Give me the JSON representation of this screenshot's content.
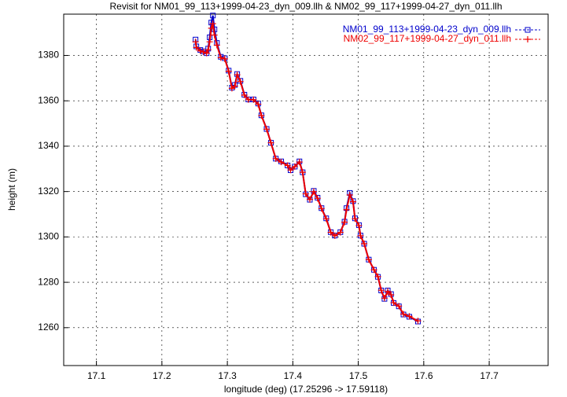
{
  "chart_data": {
    "type": "line",
    "title": "Revisit for NM01_99_113+1999-04-23_dyn_009.llh & NM02_99_117+1999-04-27_dyn_011.llh",
    "xlabel": "longitude (deg) (17.25296 -> 17.59118)",
    "ylabel": "height (m)",
    "xlim": [
      17.05,
      17.79
    ],
    "ylim": [
      1243.3,
      1398.2
    ],
    "xticks": [
      17.1,
      17.2,
      17.3,
      17.4,
      17.5,
      17.6,
      17.7
    ],
    "yticks": [
      1260,
      1280,
      1300,
      1320,
      1340,
      1360,
      1380
    ],
    "grid": true,
    "legend": "top-right",
    "series": [
      {
        "name": "NM01_99_113+1999-04-23_dyn_009.llh",
        "color": "#0000cc",
        "marker": "square",
        "x": [
          17.2514,
          17.2526,
          17.2587,
          17.2635,
          17.2683,
          17.2707,
          17.273,
          17.2755,
          17.2779,
          17.2803,
          17.284,
          17.29,
          17.296,
          17.302,
          17.307,
          17.3115,
          17.315,
          17.3199,
          17.326,
          17.332,
          17.34,
          17.3471,
          17.352,
          17.36,
          17.3666,
          17.374,
          17.3822,
          17.392,
          17.3966,
          17.403,
          17.4101,
          17.415,
          17.4197,
          17.426,
          17.432,
          17.4378,
          17.4438,
          17.451,
          17.458,
          17.4642,
          17.4726,
          17.479,
          17.482,
          17.487,
          17.492,
          17.495,
          17.501,
          17.5034,
          17.509,
          17.516,
          17.524,
          17.53,
          17.535,
          17.54,
          17.545,
          17.55,
          17.554,
          17.562,
          17.569,
          17.578,
          17.5912
        ],
        "values": [
          1387,
          1384,
          1382.4,
          1381.8,
          1381,
          1383,
          1388,
          1394.5,
          1397.6,
          1391.5,
          1385.5,
          1379.4,
          1378.8,
          1373.3,
          1365.8,
          1367,
          1371.8,
          1368.8,
          1362.7,
          1360.6,
          1360.6,
          1358.8,
          1353.6,
          1347.6,
          1341.5,
          1334.5,
          1333.3,
          1331.5,
          1329.4,
          1331,
          1333.3,
          1328.5,
          1318.8,
          1316.4,
          1320.3,
          1317.3,
          1312.7,
          1308.2,
          1302.1,
          1300.6,
          1302.1,
          1306.7,
          1312.7,
          1319.4,
          1315.8,
          1308.2,
          1305.2,
          1300.6,
          1297,
          1290,
          1285.5,
          1282.4,
          1276.4,
          1272.7,
          1276.4,
          1274.8,
          1270.9,
          1269.4,
          1265.8,
          1264.8,
          1262.7
        ]
      },
      {
        "name": "NM02_99_117+1999-04-27_dyn_011.llh",
        "color": "#ee0000",
        "marker": "plus",
        "x": [
          17.2514,
          17.2526,
          17.2587,
          17.2635,
          17.2683,
          17.2707,
          17.273,
          17.2755,
          17.2779,
          17.2803,
          17.284,
          17.29,
          17.296,
          17.302,
          17.307,
          17.3115,
          17.315,
          17.3199,
          17.326,
          17.332,
          17.34,
          17.3471,
          17.352,
          17.36,
          17.3666,
          17.374,
          17.3822,
          17.392,
          17.3966,
          17.403,
          17.4101,
          17.415,
          17.4197,
          17.426,
          17.432,
          17.4378,
          17.4438,
          17.451,
          17.458,
          17.4642,
          17.4726,
          17.479,
          17.482,
          17.487,
          17.492,
          17.495,
          17.501,
          17.5034,
          17.509,
          17.516,
          17.524,
          17.53,
          17.535,
          17.54,
          17.545,
          17.55,
          17.554,
          17.562,
          17.569,
          17.578,
          17.5912
        ],
        "values": [
          1386,
          1383.5,
          1382,
          1381.5,
          1381,
          1382.5,
          1386,
          1392,
          1394,
          1389,
          1384.5,
          1379,
          1378.5,
          1373,
          1365.5,
          1366.5,
          1371.5,
          1368.5,
          1362.5,
          1360.5,
          1360.5,
          1358.5,
          1353.5,
          1347.5,
          1341.5,
          1334.5,
          1333,
          1331.5,
          1329.5,
          1331,
          1333,
          1328.5,
          1319,
          1316.5,
          1320,
          1317,
          1312.5,
          1308,
          1302,
          1300.5,
          1302,
          1306.5,
          1312,
          1318.5,
          1315.5,
          1308,
          1305,
          1300.5,
          1297,
          1290,
          1285.5,
          1282.5,
          1276.5,
          1273,
          1276,
          1274.5,
          1271,
          1269.5,
          1266,
          1265,
          1263
        ]
      }
    ]
  }
}
